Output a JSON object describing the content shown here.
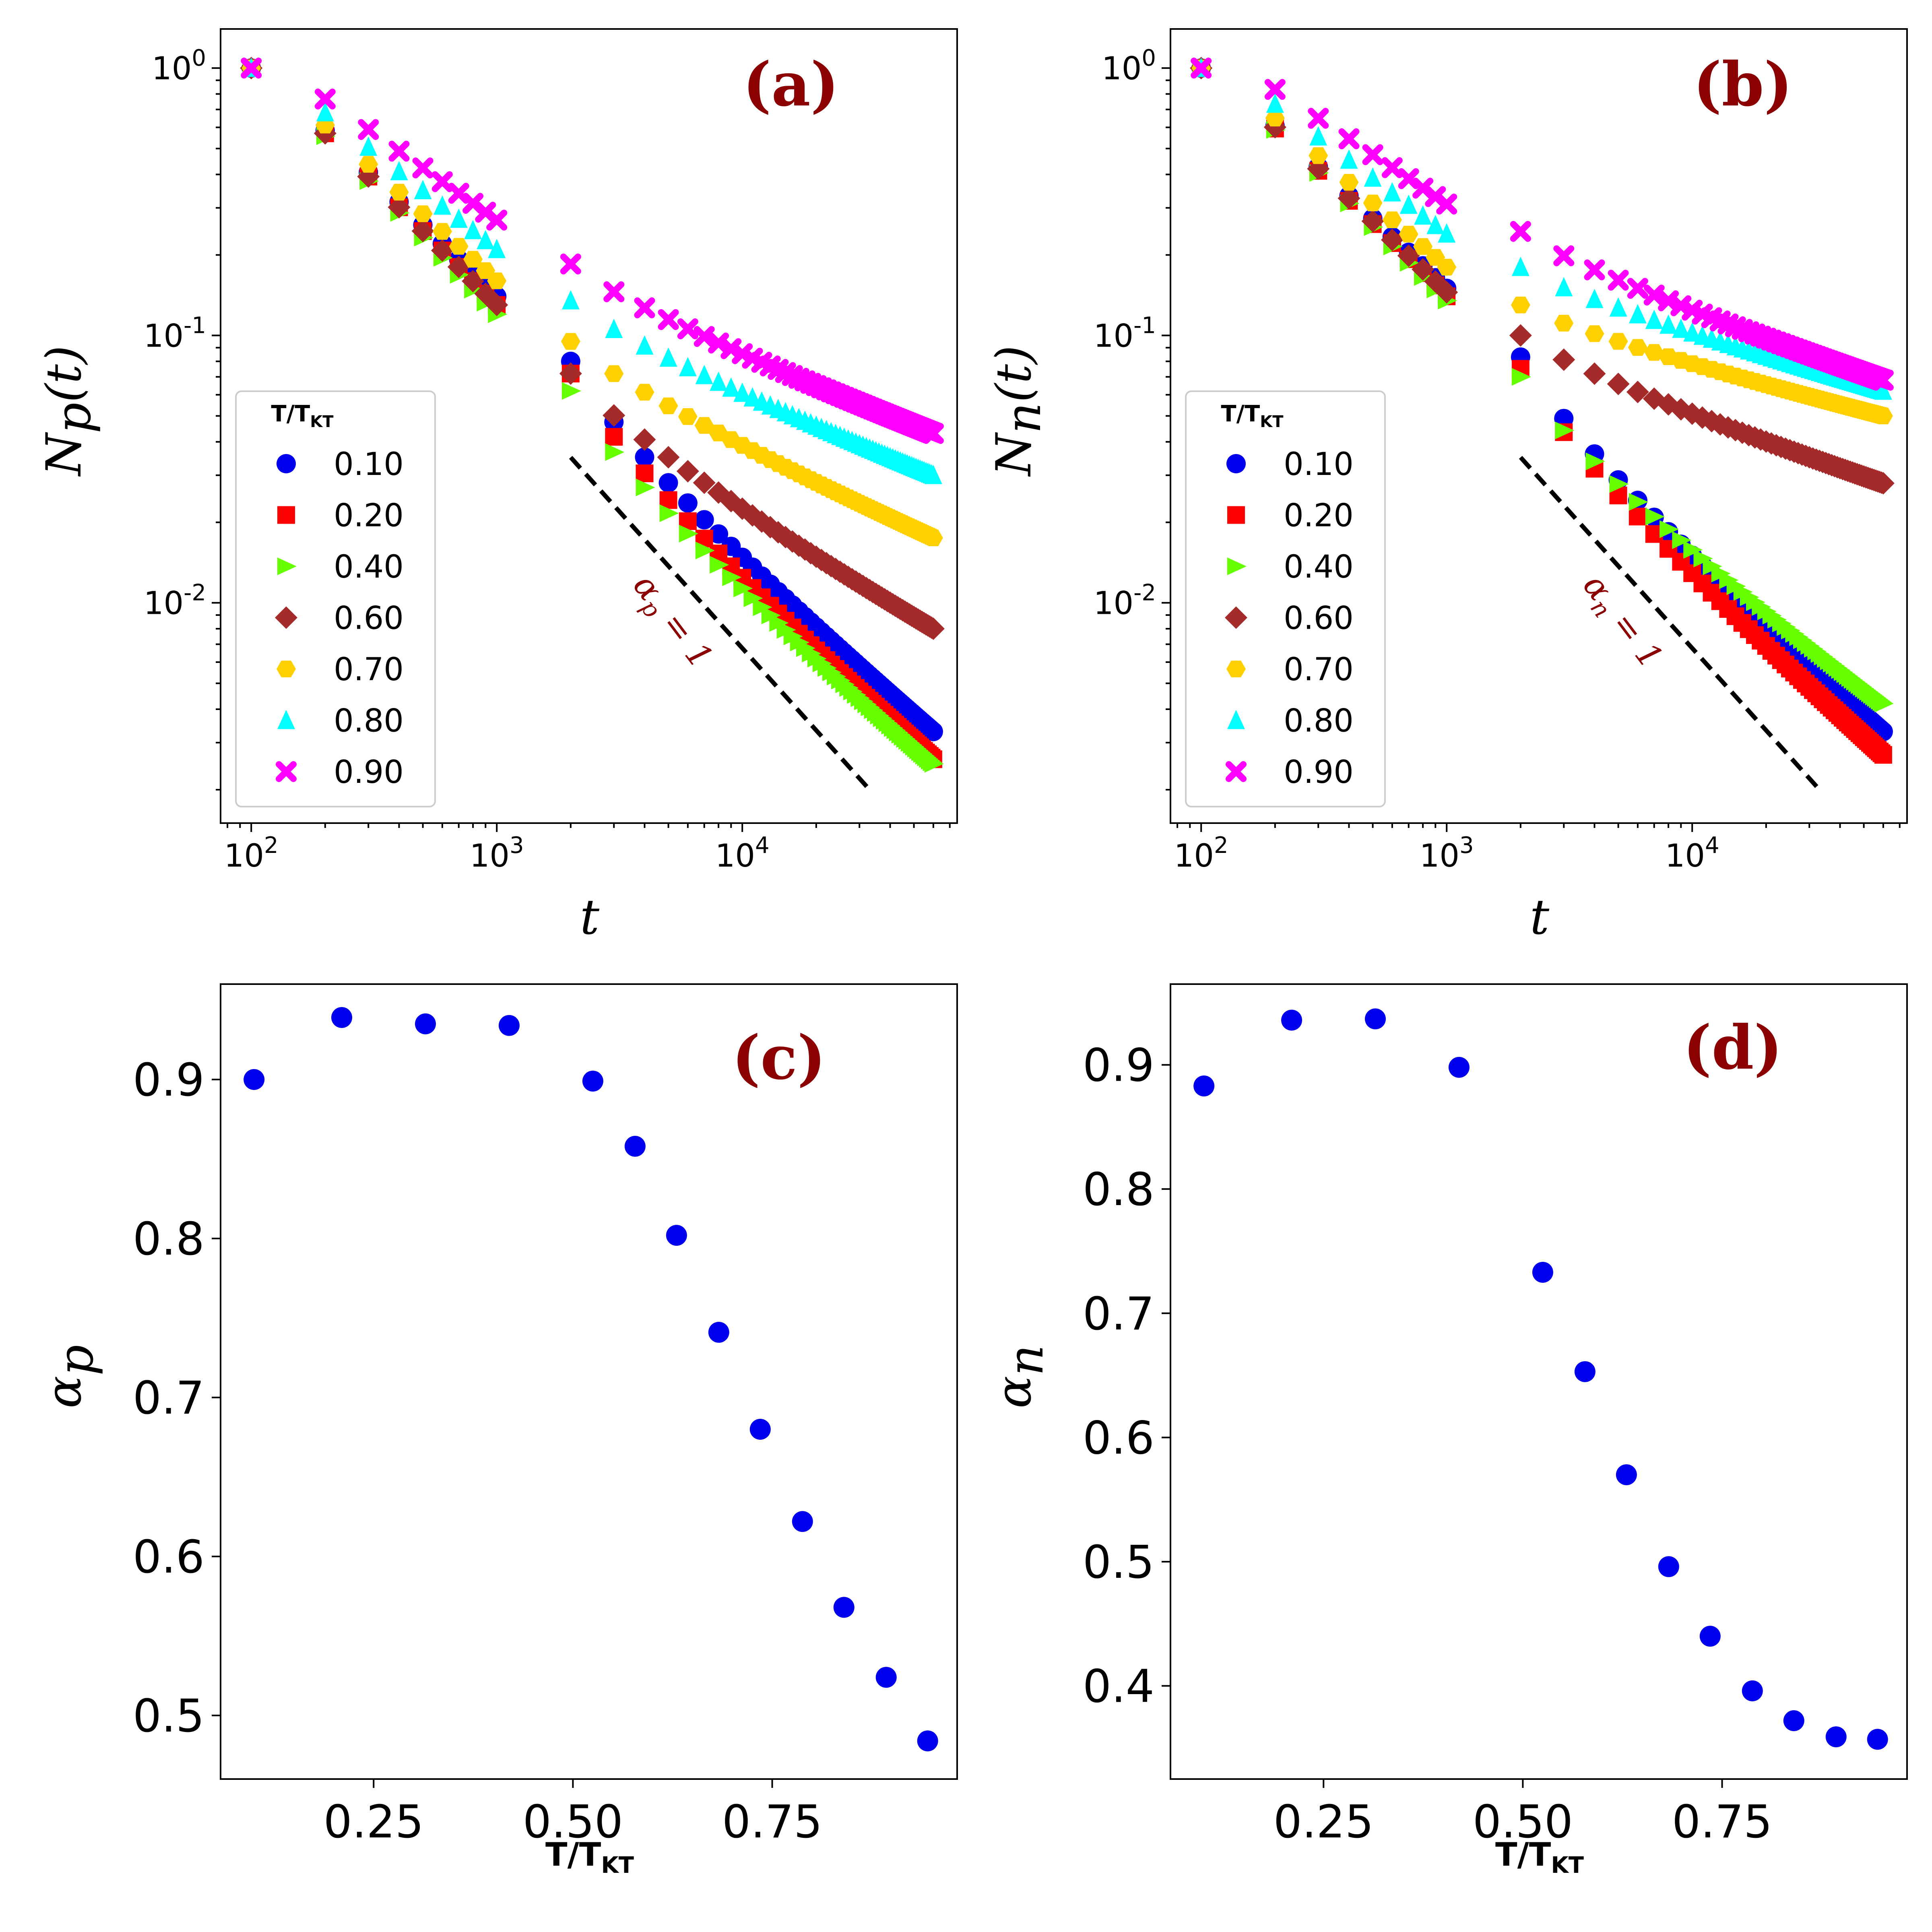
{
  "figure": {
    "background": "#ffffff"
  },
  "panels": {
    "a": {
      "label": "(a)",
      "ylabel_main": "N",
      "ylabel_sub": "p",
      "ylabel_tail": "(t)",
      "xlabel": "t",
      "slope_label": "αp = 1"
    },
    "b": {
      "label": "(b)",
      "ylabel_main": "N",
      "ylabel_sub": "n",
      "ylabel_tail": "(t)",
      "xlabel": "t",
      "slope_label": "αn = 1"
    },
    "c": {
      "label": "(c)",
      "ylabel_main": "α",
      "ylabel_sub": "p",
      "xlabel": "T/TKT"
    },
    "d": {
      "label": "(d)",
      "ylabel_main": "α",
      "ylabel_sub": "n",
      "xlabel": "T/TKT"
    }
  },
  "legend": {
    "title": "T/TKT",
    "entries": [
      {
        "label": "0.10",
        "color": "#0000ee",
        "marker": "circle"
      },
      {
        "label": "0.20",
        "color": "#ff0000",
        "marker": "square"
      },
      {
        "label": "0.40",
        "color": "#66ff00",
        "marker": "triangle-right"
      },
      {
        "label": "0.60",
        "color": "#a52a2a",
        "marker": "diamond"
      },
      {
        "label": "0.70",
        "color": "#ffd000",
        "marker": "hexagon"
      },
      {
        "label": "0.80",
        "color": "#00ffff",
        "marker": "triangle-up"
      },
      {
        "label": "0.90",
        "color": "#ff00ff",
        "marker": "x"
      }
    ]
  },
  "chart_data": [
    {
      "id": "a",
      "type": "scatter",
      "xscale": "log",
      "yscale": "log",
      "title": "(a)",
      "xlabel": "t",
      "ylabel": "Np(t)",
      "xlim": [
        75,
        75000
      ],
      "ylim": [
        0.0015,
        1.4
      ],
      "xticks": [
        "10^2",
        "10^3",
        "10^4"
      ],
      "yticks": [
        "10^0",
        "10^-1",
        "10^-2"
      ],
      "legend_title": "T/TKT",
      "legend_position": "center-left",
      "series": [
        {
          "name": "0.10",
          "early_end": 0.14,
          "late_start": 0.08,
          "late_end": 0.0033
        },
        {
          "name": "0.20",
          "early_end": 0.13,
          "late_start": 0.072,
          "late_end": 0.0026
        },
        {
          "name": "0.40",
          "early_end": 0.12,
          "late_start": 0.062,
          "late_end": 0.0025
        },
        {
          "name": "0.60",
          "early_end": 0.13,
          "late_start": 0.072,
          "late_end": 0.008
        },
        {
          "name": "0.70",
          "early_end": 0.16,
          "late_start": 0.095,
          "late_end": 0.0175
        },
        {
          "name": "0.80",
          "early_end": 0.21,
          "late_start": 0.135,
          "late_end": 0.03
        },
        {
          "name": "0.90",
          "early_end": 0.27,
          "late_start": 0.185,
          "late_end": 0.043
        }
      ],
      "early_start": [
        1.0,
        0.57
      ],
      "reference_line": {
        "label": "αp = 1",
        "slope": -1,
        "x": [
          2000,
          33000
        ],
        "y": [
          0.035,
          0.002
        ],
        "style": "dashed"
      }
    },
    {
      "id": "b",
      "type": "scatter",
      "xscale": "log",
      "yscale": "log",
      "title": "(b)",
      "xlabel": "t",
      "ylabel": "Nn(t)",
      "xlim": [
        75,
        75000
      ],
      "ylim": [
        0.0015,
        1.4
      ],
      "xticks": [
        "10^2",
        "10^3",
        "10^4"
      ],
      "yticks": [
        "10^0",
        "10^-1",
        "10^-2"
      ],
      "legend_title": "T/TKT",
      "legend_position": "center-left",
      "series": [
        {
          "name": "0.10",
          "early_end": 0.15,
          "late_start": 0.083,
          "late_end": 0.0033
        },
        {
          "name": "0.20",
          "early_end": 0.14,
          "late_start": 0.075,
          "late_end": 0.0027
        },
        {
          "name": "0.40",
          "early_end": 0.135,
          "late_start": 0.07,
          "late_end": 0.0042
        },
        {
          "name": "0.60",
          "early_end": 0.145,
          "late_start": 0.1,
          "late_end": 0.028
        },
        {
          "name": "0.70",
          "early_end": 0.18,
          "late_start": 0.13,
          "late_end": 0.05
        },
        {
          "name": "0.80",
          "early_end": 0.24,
          "late_start": 0.18,
          "late_end": 0.062
        },
        {
          "name": "0.90",
          "early_end": 0.31,
          "late_start": 0.245,
          "late_end": 0.068
        }
      ],
      "early_start": [
        1.0,
        0.58
      ],
      "reference_line": {
        "label": "αn = 1",
        "slope": -1,
        "x": [
          2000,
          33000
        ],
        "y": [
          0.035,
          0.002
        ],
        "style": "dashed"
      }
    },
    {
      "id": "c",
      "type": "scatter",
      "title": "(c)",
      "xlabel": "T/TKT",
      "ylabel": "αp",
      "xlim": [
        0.058,
        0.982
      ],
      "ylim": [
        0.46,
        0.96
      ],
      "xticks": [
        0.25,
        0.5,
        0.75
      ],
      "yticks": [
        0.5,
        0.6,
        0.7,
        0.8,
        0.9
      ],
      "x": [
        0.1,
        0.21,
        0.315,
        0.42,
        0.525,
        0.578,
        0.63,
        0.683,
        0.735,
        0.788,
        0.84,
        0.893,
        0.945
      ],
      "y": [
        0.9,
        0.939,
        0.935,
        0.934,
        0.899,
        0.858,
        0.802,
        0.741,
        0.68,
        0.622,
        0.568,
        0.524,
        0.484
      ],
      "color": "#0000ee"
    },
    {
      "id": "d",
      "type": "scatter",
      "title": "(d)",
      "xlabel": "T/TKT",
      "ylabel": "αn",
      "xlim": [
        0.058,
        0.982
      ],
      "ylim": [
        0.325,
        0.965
      ],
      "xticks": [
        0.25,
        0.5,
        0.75
      ],
      "yticks": [
        0.4,
        0.5,
        0.6,
        0.7,
        0.8,
        0.9
      ],
      "x": [
        0.1,
        0.21,
        0.315,
        0.42,
        0.525,
        0.578,
        0.63,
        0.683,
        0.735,
        0.788,
        0.84,
        0.893,
        0.945
      ],
      "y": [
        0.883,
        0.936,
        0.937,
        0.898,
        0.733,
        0.653,
        0.57,
        0.496,
        0.44,
        0.396,
        0.372,
        0.359,
        0.357
      ],
      "color": "#0000ee"
    }
  ]
}
